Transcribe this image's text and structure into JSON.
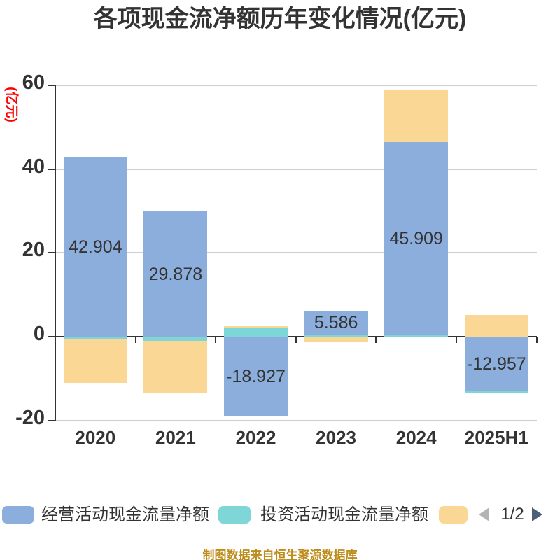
{
  "title": "各项现金流净额历年变化情况(亿元)",
  "footer": "制图数据来自恒生聚源数据库",
  "colors": {
    "operating": "#8CAEDC",
    "investing": "#7FD6D6",
    "financing": "#FBD795",
    "grid": "#CFCFCF",
    "axis": "#333333",
    "text": "#333333",
    "y_name": "#FF0000",
    "footer": "#BD8C1A",
    "pager_prev": "#B3B3B6",
    "pager_next": "#4D5F77"
  },
  "y_axis": {
    "name": "(亿元)",
    "ticks": [
      60,
      40,
      20,
      0,
      -20
    ],
    "max": 60,
    "min": -20
  },
  "chart_data": {
    "type": "bar",
    "stacked": true,
    "title": "各项现金流净额历年变化情况(亿元)",
    "ylabel": "(亿元)",
    "ylim": [
      -20,
      60
    ],
    "grid": true,
    "categories": [
      "2020",
      "2021",
      "2022",
      "2023",
      "2024",
      "2025H1"
    ],
    "series": [
      {
        "name": "经营活动现金流量净额",
        "color_key": "operating",
        "values": [
          42.904,
          29.878,
          -18.927,
          5.586,
          45.909,
          -12.957
        ]
      },
      {
        "name": "投资活动现金流量净额",
        "color_key": "investing",
        "values": [
          -0.55,
          -1.0,
          1.95,
          0.5,
          0.5,
          -0.45
        ]
      },
      {
        "name": "",
        "color_key": "financing",
        "values": [
          -10.44,
          -12.5,
          0.6,
          -1.1,
          12.49,
          5.2
        ]
      }
    ],
    "bar_value_labels": [
      "42.904",
      "29.878",
      "-18.927",
      "5.586",
      "45.909",
      "-12.957"
    ],
    "stacks": [
      [
        {
          "s": 0,
          "from": 0,
          "to": 42.904
        },
        {
          "s": 1,
          "from": -0.55,
          "to": 0
        },
        {
          "s": 2,
          "from": -10.99,
          "to": -0.55
        }
      ],
      [
        {
          "s": 0,
          "from": 0,
          "to": 29.878
        },
        {
          "s": 1,
          "from": -1.0,
          "to": 0
        },
        {
          "s": 2,
          "from": -13.5,
          "to": -1.0
        }
      ],
      [
        {
          "s": 2,
          "from": 1.95,
          "to": 2.55
        },
        {
          "s": 1,
          "from": 0,
          "to": 1.95
        },
        {
          "s": 0,
          "from": -18.927,
          "to": 0
        }
      ],
      [
        {
          "s": 0,
          "from": 0.5,
          "to": 6.086
        },
        {
          "s": 1,
          "from": 0,
          "to": 0.5
        },
        {
          "s": 2,
          "from": -1.1,
          "to": 0
        }
      ],
      [
        {
          "s": 2,
          "from": 46.409,
          "to": 58.9
        },
        {
          "s": 0,
          "from": 0.5,
          "to": 46.409
        },
        {
          "s": 1,
          "from": 0,
          "to": 0.5
        }
      ],
      [
        {
          "s": 2,
          "from": 0,
          "to": 5.2
        },
        {
          "s": 0,
          "from": -12.957,
          "to": 0
        },
        {
          "s": 1,
          "from": -13.4,
          "to": -12.957
        }
      ]
    ]
  },
  "legend": {
    "items": [
      {
        "label": "经营活动现金流量净额",
        "color_key": "operating"
      },
      {
        "label": "投资活动现金流量净额",
        "color_key": "investing"
      },
      {
        "label": "",
        "color_key": "financing"
      }
    ],
    "pager": {
      "text": "1/2"
    }
  }
}
